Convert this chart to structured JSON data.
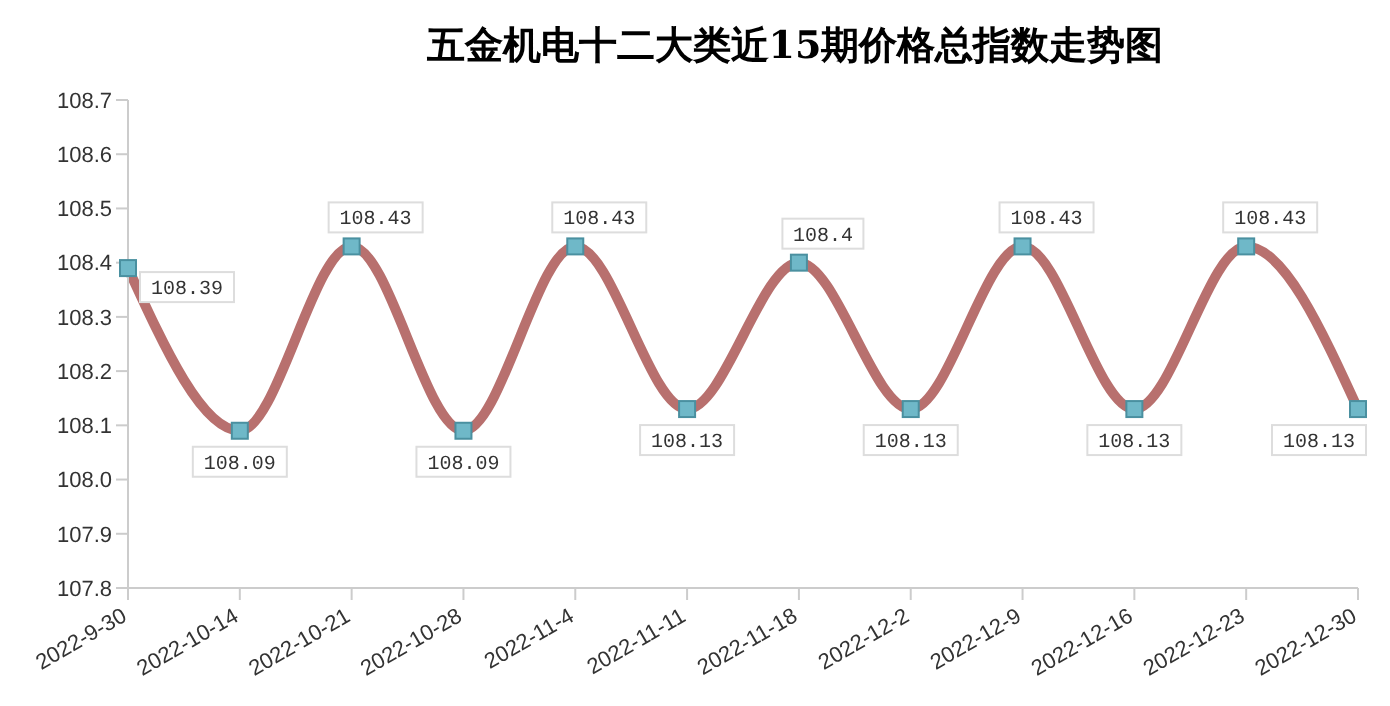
{
  "chart_data": {
    "type": "line",
    "title": "五金机电十二大类近15期价格总指数走势图",
    "categories": [
      "2022-9-30",
      "2022-10-14",
      "2022-10-21",
      "2022-10-28",
      "2022-11-4",
      "2022-11-11",
      "2022-11-18",
      "2022-12-2",
      "2022-12-9",
      "2022-12-16",
      "2022-12-23",
      "2022-12-30"
    ],
    "series": [
      {
        "color": "#b8706e",
        "values": [
          108.39,
          108.09,
          108.43,
          108.09,
          108.43,
          108.13,
          108.4,
          108.13,
          108.43,
          108.13,
          108.43,
          108.13
        ]
      }
    ],
    "ylim": [
      107.8,
      108.7
    ],
    "yticks": [
      107.8,
      107.9,
      {
        "value": 108,
        "label": "108.0"
      },
      108.1,
      108.2,
      108.3,
      108.4,
      108.5,
      108.6,
      108.7
    ],
    "data_labels": true,
    "marker": "square",
    "grid": false
  }
}
